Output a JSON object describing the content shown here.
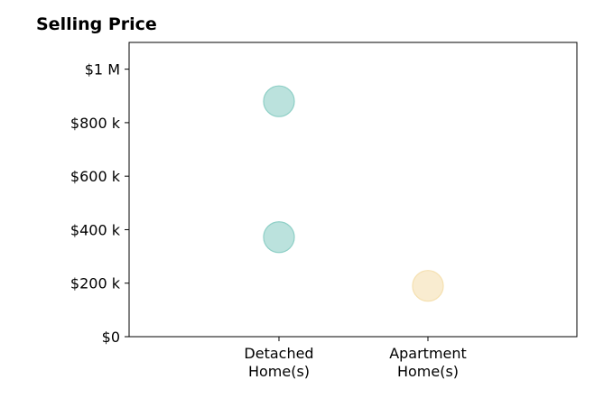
{
  "chart_data": {
    "type": "scatter",
    "title": "Selling Price",
    "xlabel": "",
    "ylabel": "",
    "categories": [
      [
        "Detached",
        "Home(s)"
      ],
      [
        "Apartment",
        "Home(s)"
      ]
    ],
    "y_ticks": [
      {
        "value": 0,
        "label": "$0"
      },
      {
        "value": 200000,
        "label": "$200 k"
      },
      {
        "value": 400000,
        "label": "$400 k"
      },
      {
        "value": 600000,
        "label": "$600 k"
      },
      {
        "value": 800000,
        "label": "$800 k"
      },
      {
        "value": 1000000,
        "label": "$1 M"
      }
    ],
    "ylim": [
      0,
      1100000
    ],
    "grid": false,
    "points": [
      {
        "category": 0,
        "value": 880000,
        "color": "#8ecfc6"
      },
      {
        "category": 0,
        "value": 372000,
        "color": "#8ecfc6"
      },
      {
        "category": 1,
        "value": 190000,
        "color": "#f5e0b0"
      }
    ]
  }
}
